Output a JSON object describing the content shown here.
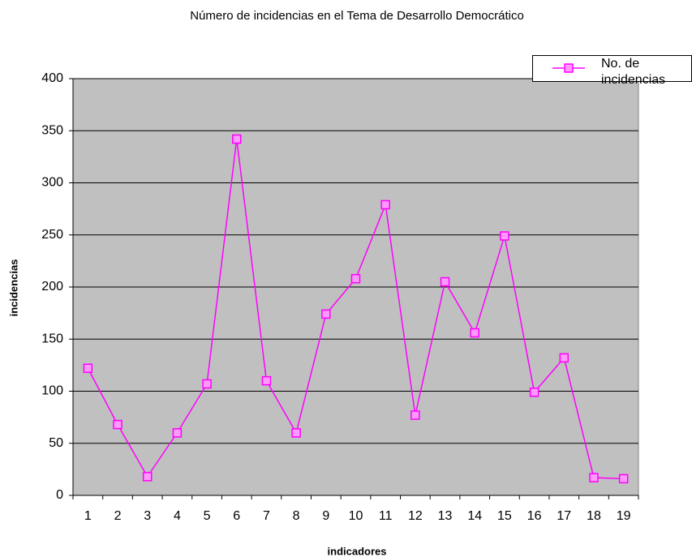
{
  "chart_data": {
    "type": "line",
    "title": "Número de incidencias en el Tema de Desarrollo Democrático",
    "x_label": "indicadores",
    "y_label": "incidencias",
    "categories": [
      "1",
      "2",
      "3",
      "4",
      "5",
      "6",
      "7",
      "8",
      "9",
      "10",
      "11",
      "12",
      "13",
      "14",
      "15",
      "16",
      "17",
      "18",
      "19"
    ],
    "series": [
      {
        "name": "No. de incidencias",
        "color": "#ff00ff",
        "values": [
          122,
          68,
          18,
          60,
          107,
          342,
          110,
          60,
          174,
          208,
          279,
          77,
          205,
          156,
          249,
          99,
          132,
          17,
          16
        ]
      }
    ],
    "ylim": [
      0,
      400
    ],
    "yticks": [
      0,
      50,
      100,
      150,
      200,
      250,
      300,
      350,
      400
    ],
    "grid": true,
    "legend": "top-right"
  }
}
